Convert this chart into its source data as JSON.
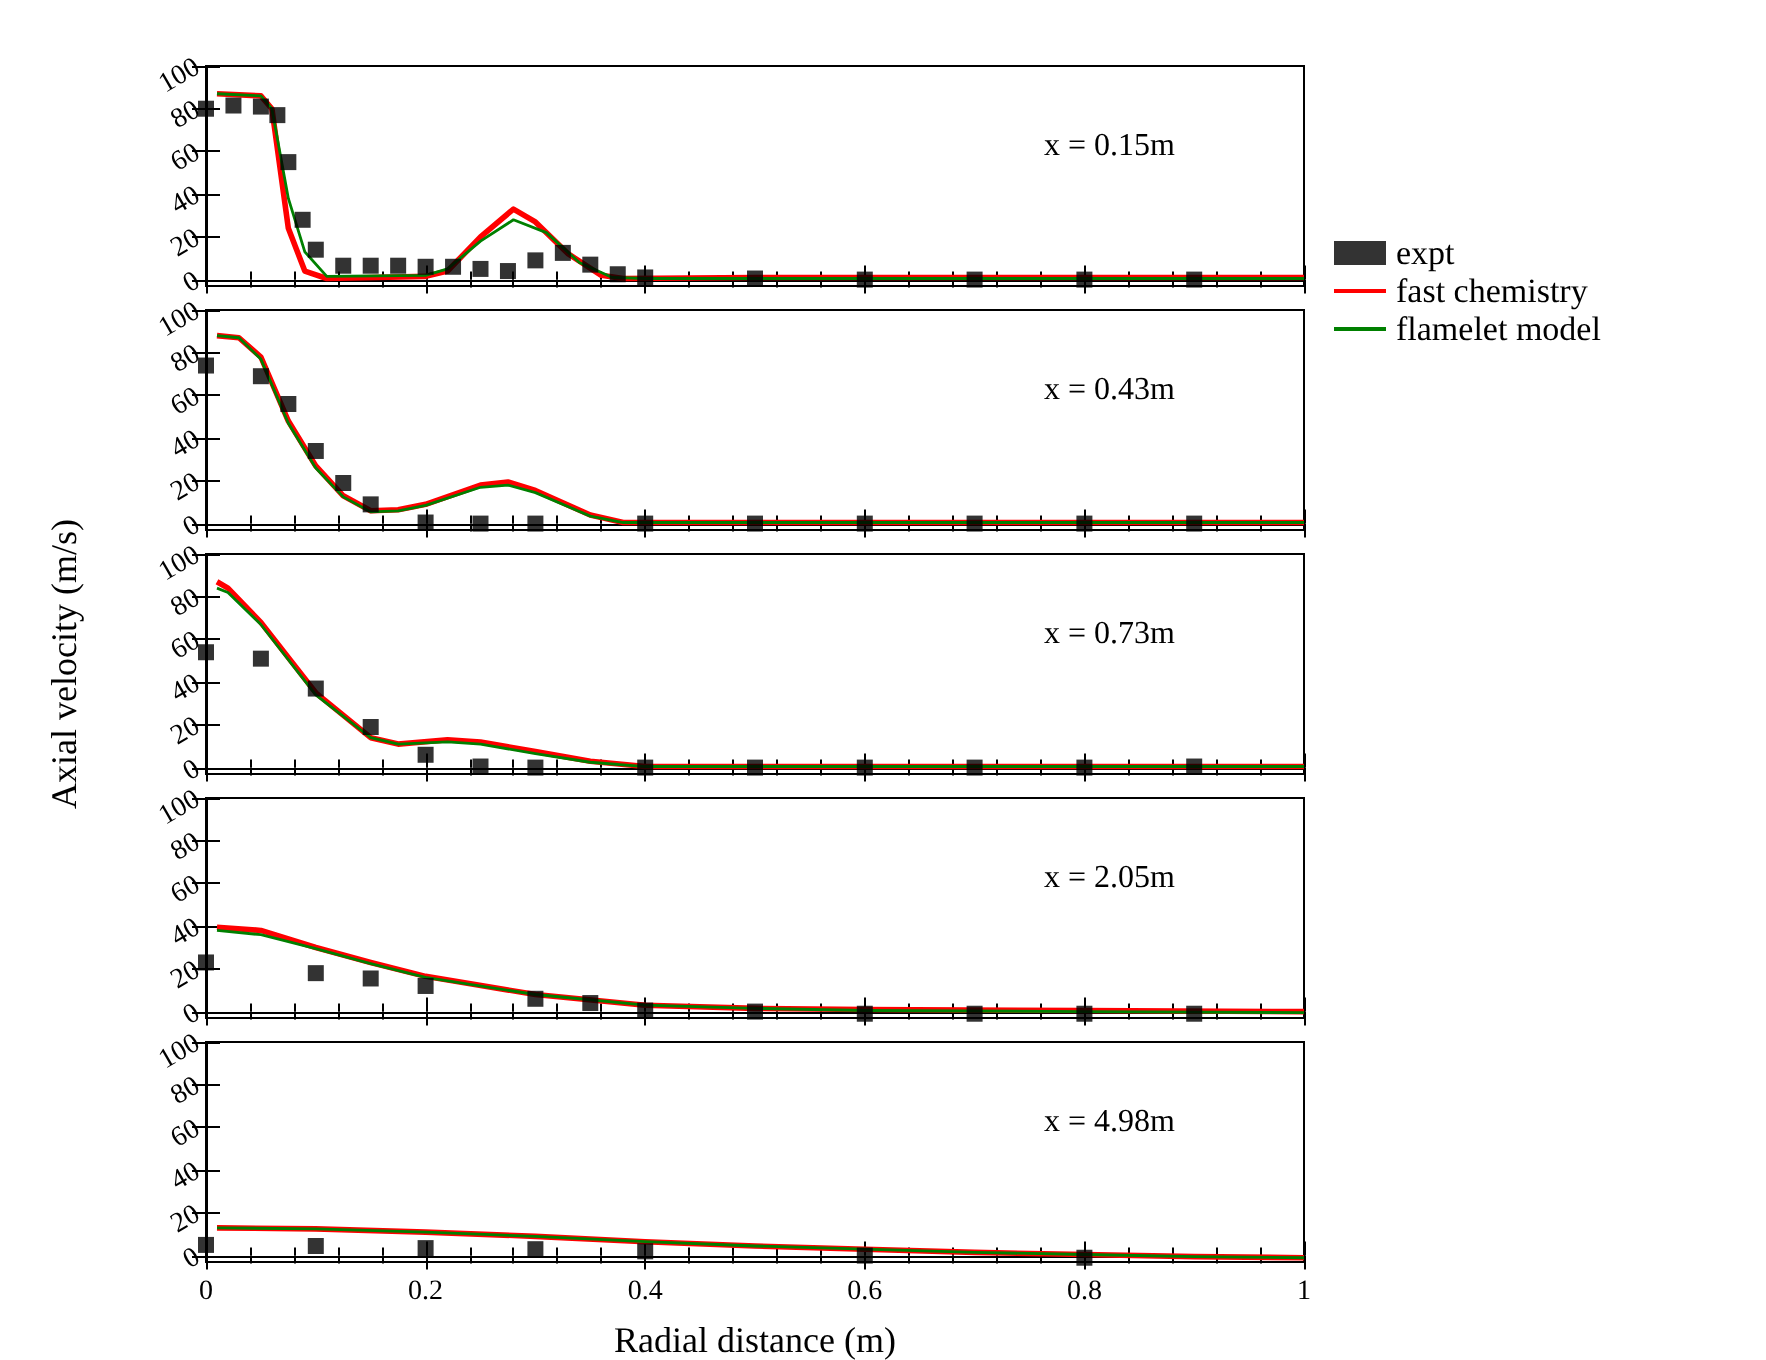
{
  "chart_data": [
    {
      "type": "line",
      "legend": "right",
      "tick_labels": "y",
      "annotations": [
        "x = 0.15m"
      ],
      "xlim": [
        0,
        1
      ],
      "xticks": [
        0,
        0.2,
        0.4,
        0.6,
        0.8,
        1
      ],
      "ylim": [
        -3,
        100
      ],
      "yticks": [
        0,
        20,
        40,
        60,
        80,
        100
      ],
      "series": [
        {
          "name": "expt",
          "type": "scatter",
          "marker": "square",
          "color": "#000000",
          "x": [
            0,
            0.025,
            0.05,
            0.065,
            0.075,
            0.088,
            0.1,
            0.125,
            0.15,
            0.175,
            0.2,
            0.225,
            0.25,
            0.275,
            0.3,
            0.325,
            0.35,
            0.375,
            0.4,
            0.5,
            0.6,
            0.7,
            0.8,
            0.9
          ],
          "values": [
            80,
            81.5,
            81,
            77,
            55,
            28,
            14,
            6.5,
            6.5,
            6.5,
            6,
            6,
            5,
            4,
            9,
            12.5,
            7,
            2.5,
            1,
            0.5,
            0,
            0,
            0,
            0
          ]
        },
        {
          "name": "fast chemistry",
          "type": "line",
          "color": "#ff0000",
          "x": [
            0.01,
            0.05,
            0.06,
            0.075,
            0.09,
            0.11,
            0.2,
            0.22,
            0.25,
            0.28,
            0.3,
            0.33,
            0.36,
            0.38,
            0.5,
            1
          ],
          "values": [
            87,
            86,
            80,
            24,
            4,
            0.5,
            1.5,
            4,
            20,
            33,
            27,
            12,
            2,
            0.5,
            1,
            1
          ]
        },
        {
          "name": "flamelet model",
          "type": "line",
          "color": "#008000",
          "x": [
            0.01,
            0.05,
            0.06,
            0.075,
            0.09,
            0.11,
            0.2,
            0.22,
            0.25,
            0.28,
            0.31,
            0.34,
            0.37,
            0.4,
            1
          ],
          "values": [
            87,
            86,
            80,
            38,
            13,
            1.5,
            2,
            5,
            18,
            28,
            22,
            8,
            1,
            0.5,
            0.5
          ]
        }
      ]
    },
    {
      "type": "line",
      "tick_labels": "y",
      "annotations": [
        "x = 0.43m"
      ],
      "xlim": [
        0,
        1
      ],
      "xticks": [
        0,
        0.2,
        0.4,
        0.6,
        0.8,
        1
      ],
      "ylim": [
        -3,
        100
      ],
      "yticks": [
        0,
        20,
        40,
        60,
        80,
        100
      ],
      "series": [
        {
          "type": "scatter",
          "marker": "square",
          "color": "#000000",
          "x": [
            0,
            0.05,
            0.075,
            0.1,
            0.125,
            0.15,
            0.2,
            0.25,
            0.3,
            0.4,
            0.5,
            0.6,
            0.7,
            0.8,
            0.9
          ],
          "values": [
            74,
            69,
            56,
            34,
            19,
            9,
            0.5,
            0,
            0,
            0,
            0,
            0,
            0,
            0,
            0
          ]
        },
        {
          "type": "line",
          "color": "#ff0000",
          "x": [
            0.01,
            0.03,
            0.05,
            0.075,
            0.1,
            0.125,
            0.15,
            0.175,
            0.2,
            0.25,
            0.275,
            0.3,
            0.35,
            0.38,
            1
          ],
          "values": [
            88,
            87,
            78,
            48,
            27,
            13,
            6,
            6.5,
            9,
            18,
            19.5,
            15.5,
            4,
            0.5,
            0.5
          ]
        },
        {
          "type": "line",
          "color": "#008000",
          "x": [
            0.01,
            0.03,
            0.05,
            0.075,
            0.1,
            0.125,
            0.15,
            0.175,
            0.2,
            0.25,
            0.275,
            0.3,
            0.35,
            0.38,
            1
          ],
          "values": [
            88,
            87,
            77,
            47,
            26,
            12.5,
            5.5,
            6,
            8.5,
            17,
            18,
            14.5,
            3.5,
            0.5,
            0.5
          ]
        }
      ]
    },
    {
      "type": "line",
      "tick_labels": "y",
      "ylabel": "Axial velocity (m/s)",
      "annotations": [
        "x = 0.73m"
      ],
      "xlim": [
        0,
        1
      ],
      "xticks": [
        0,
        0.2,
        0.4,
        0.6,
        0.8,
        1
      ],
      "ylim": [
        -3,
        100
      ],
      "yticks": [
        0,
        20,
        40,
        60,
        80,
        100
      ],
      "series": [
        {
          "type": "scatter",
          "marker": "square",
          "color": "#000000",
          "x": [
            0,
            0.05,
            0.1,
            0.15,
            0.2,
            0.25,
            0.3,
            0.4,
            0.5,
            0.6,
            0.7,
            0.8,
            0.9
          ],
          "values": [
            54,
            51,
            37,
            19,
            6,
            0.5,
            0,
            0,
            0,
            0,
            0,
            0,
            0.5
          ]
        },
        {
          "type": "line",
          "color": "#ff0000",
          "x": [
            0.01,
            0.02,
            0.05,
            0.1,
            0.15,
            0.175,
            0.22,
            0.25,
            0.3,
            0.35,
            0.4,
            1
          ],
          "values": [
            87,
            84,
            68,
            35,
            14,
            11,
            13,
            12,
            7.5,
            3,
            0.5,
            0.5
          ]
        },
        {
          "type": "line",
          "color": "#008000",
          "x": [
            0.01,
            0.02,
            0.05,
            0.1,
            0.15,
            0.175,
            0.22,
            0.25,
            0.3,
            0.35,
            0.4,
            1
          ],
          "values": [
            84,
            82,
            67,
            34,
            14,
            11,
            12,
            11,
            6.5,
            2.5,
            0.5,
            0.5
          ]
        }
      ]
    },
    {
      "type": "line",
      "tick_labels": "y",
      "annotations": [
        "x = 2.05m"
      ],
      "xlim": [
        0,
        1
      ],
      "xticks": [
        0,
        0.2,
        0.4,
        0.6,
        0.8,
        1
      ],
      "ylim": [
        -3,
        100
      ],
      "yticks": [
        0,
        20,
        40,
        60,
        80,
        100
      ],
      "series": [
        {
          "type": "scatter",
          "marker": "square",
          "color": "#000000",
          "x": [
            0,
            0.1,
            0.15,
            0.2,
            0.3,
            0.35,
            0.4,
            0.5,
            0.6,
            0.7,
            0.8,
            0.9
          ],
          "values": [
            23,
            18,
            15.5,
            12,
            6,
            4,
            0.5,
            0,
            -1,
            -1,
            -1,
            -1
          ]
        },
        {
          "type": "line",
          "color": "#ff0000",
          "x": [
            0.01,
            0.05,
            0.1,
            0.15,
            0.2,
            0.3,
            0.4,
            0.5,
            0.6,
            0.8,
            1
          ],
          "values": [
            39.5,
            38,
            30,
            23,
            16.5,
            8,
            3,
            1.5,
            1,
            0.5,
            0
          ]
        },
        {
          "type": "line",
          "color": "#008000",
          "x": [
            0.01,
            0.05,
            0.1,
            0.15,
            0.2,
            0.3,
            0.4,
            0.5,
            0.6,
            0.8,
            1
          ],
          "values": [
            38,
            36,
            29.5,
            22.5,
            16,
            8,
            3,
            1.5,
            0.5,
            0,
            -0.5
          ]
        }
      ]
    },
    {
      "type": "line",
      "xlabel": "Radial distance (m)",
      "annotations": [
        "x = 4.98m"
      ],
      "xlim": [
        0,
        1
      ],
      "xticks": [
        0,
        0.2,
        0.4,
        0.6,
        0.8,
        1
      ],
      "ylim": [
        -3,
        100
      ],
      "yticks": [
        0,
        20,
        40,
        60,
        80,
        100
      ],
      "series": [
        {
          "type": "scatter",
          "marker": "square",
          "color": "#000000",
          "x": [
            0,
            0.1,
            0.2,
            0.3,
            0.4,
            0.6,
            0.8
          ],
          "values": [
            5,
            4.5,
            3.5,
            3,
            2,
            0,
            -1
          ]
        },
        {
          "type": "line",
          "color": "#ff0000",
          "x": [
            0.01,
            0.1,
            0.2,
            0.3,
            0.4,
            0.5,
            0.6,
            0.7,
            0.8,
            0.9,
            1
          ],
          "values": [
            13,
            12.5,
            11,
            9,
            6.5,
            4.5,
            3,
            1.5,
            0.5,
            -0.5,
            -1
          ]
        },
        {
          "type": "line",
          "color": "#008000",
          "x": [
            0.01,
            0.1,
            0.2,
            0.3,
            0.4,
            0.5,
            0.6,
            0.7,
            0.8,
            0.9,
            1
          ],
          "values": [
            13,
            12.5,
            11,
            9,
            6.5,
            4.5,
            3,
            1.5,
            0.5,
            -0.5,
            -1
          ]
        }
      ]
    }
  ]
}
